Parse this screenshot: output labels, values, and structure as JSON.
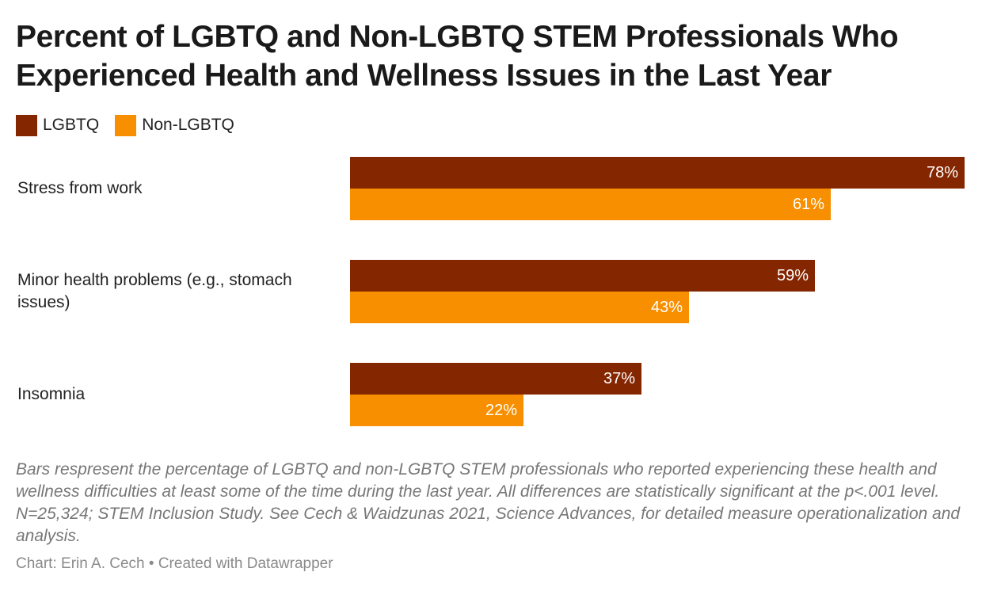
{
  "colors": {
    "lgbtq": "#842600",
    "non_lgbtq": "#f78f00"
  },
  "chart_data": {
    "type": "bar",
    "orientation": "horizontal",
    "title": "Percent of LGBTQ and Non-LGBTQ STEM Professionals Who Experienced Health and Wellness Issues in the Last Year",
    "categories": [
      "Stress from work",
      "Minor health problems (e.g., stomach issues)",
      "Insomnia"
    ],
    "series": [
      {
        "name": "LGBTQ",
        "values": [
          78,
          59,
          37
        ],
        "labels": [
          "78%",
          "59%",
          "37%"
        ]
      },
      {
        "name": "Non-LGBTQ",
        "values": [
          61,
          43,
          22
        ],
        "labels": [
          "61%",
          "43%",
          "22%"
        ]
      }
    ],
    "xlim": [
      0,
      78
    ],
    "xlabel": "",
    "ylabel": "",
    "grid": false,
    "legend": "top-left",
    "notes": "Bars respresent the percentage of LGBTQ and non-LGBTQ STEM professionals who reported experiencing these health and wellness difficulties at least some of the time during the last year. All differences are statistically significant at the p<.001 level. N=25,324; STEM Inclusion Study. See Cech & Waidzunas 2021, Science Advances, for detailed measure operationalization and analysis.",
    "byline": "Chart: Erin A. Cech • Created with Datawrapper"
  }
}
